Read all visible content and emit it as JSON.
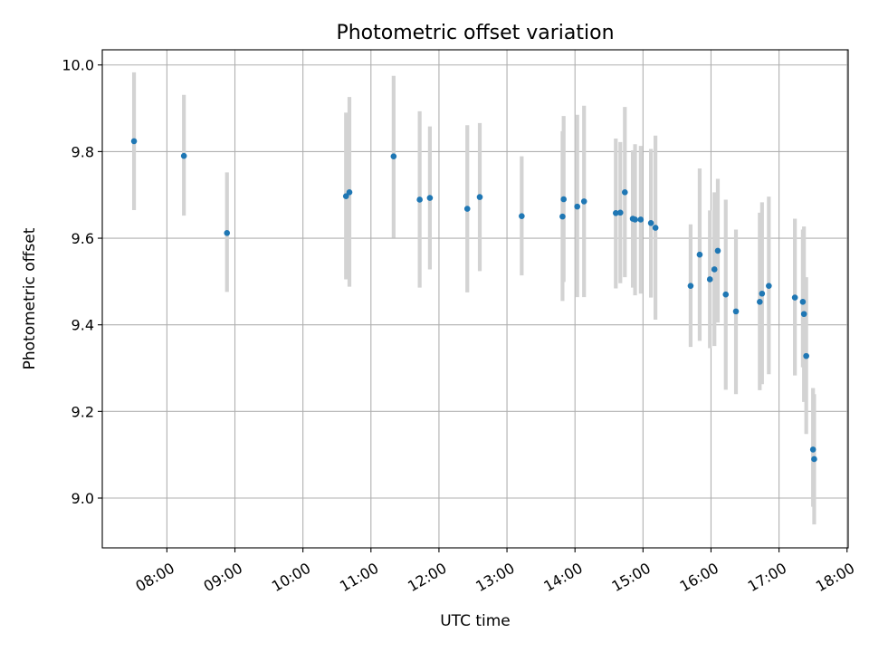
{
  "chart_data": {
    "type": "scatter",
    "title": "Photometric offset variation",
    "xlabel": "UTC time",
    "ylabel": "Photometric offset",
    "x_axis_type": "time",
    "xlim": [
      "07:03",
      "18:01"
    ],
    "ylim": [
      8.885,
      10.035
    ],
    "xticks": [
      "08:00",
      "09:00",
      "10:00",
      "11:00",
      "12:00",
      "13:00",
      "14:00",
      "15:00",
      "16:00",
      "17:00",
      "18:00"
    ],
    "yticks": [
      9.0,
      9.2,
      9.4,
      9.6,
      9.8,
      10.0
    ],
    "ytick_labels": [
      "9.0",
      "9.2",
      "9.4",
      "9.6",
      "9.8",
      "10.0"
    ],
    "grid": true,
    "marker_color": "#1f77b4",
    "errorbar_color": "#d3d3d3",
    "points": [
      {
        "t": "07:31",
        "y": 9.824,
        "lo": 9.665,
        "hi": 9.983
      },
      {
        "t": "08:15",
        "y": 9.79,
        "lo": 9.652,
        "hi": 9.931
      },
      {
        "t": "08:53",
        "y": 9.612,
        "lo": 9.476,
        "hi": 9.752
      },
      {
        "t": "10:38",
        "y": 9.697,
        "lo": 9.505,
        "hi": 9.89
      },
      {
        "t": "10:41",
        "y": 9.706,
        "lo": 9.488,
        "hi": 9.926
      },
      {
        "t": "11:20",
        "y": 9.789,
        "lo": 9.601,
        "hi": 9.975
      },
      {
        "t": "11:43",
        "y": 9.689,
        "lo": 9.486,
        "hi": 9.893
      },
      {
        "t": "11:52",
        "y": 9.693,
        "lo": 9.528,
        "hi": 9.858
      },
      {
        "t": "12:25",
        "y": 9.668,
        "lo": 9.475,
        "hi": 9.861
      },
      {
        "t": "12:36",
        "y": 9.695,
        "lo": 9.524,
        "hi": 9.866
      },
      {
        "t": "13:13",
        "y": 9.651,
        "lo": 9.514,
        "hi": 9.789
      },
      {
        "t": "13:49",
        "y": 9.65,
        "lo": 9.455,
        "hi": 9.847
      },
      {
        "t": "13:50",
        "y": 9.69,
        "lo": 9.499,
        "hi": 9.882
      },
      {
        "t": "14:02",
        "y": 9.673,
        "lo": 9.464,
        "hi": 9.885
      },
      {
        "t": "14:08",
        "y": 9.685,
        "lo": 9.464,
        "hi": 9.906
      },
      {
        "t": "14:36",
        "y": 9.658,
        "lo": 9.484,
        "hi": 9.83
      },
      {
        "t": "14:40",
        "y": 9.659,
        "lo": 9.496,
        "hi": 9.822
      },
      {
        "t": "14:44",
        "y": 9.706,
        "lo": 9.51,
        "hi": 9.903
      },
      {
        "t": "14:51",
        "y": 9.645,
        "lo": 9.486,
        "hi": 9.803
      },
      {
        "t": "14:53",
        "y": 9.643,
        "lo": 9.468,
        "hi": 9.817
      },
      {
        "t": "14:58",
        "y": 9.643,
        "lo": 9.472,
        "hi": 9.813
      },
      {
        "t": "15:07",
        "y": 9.635,
        "lo": 9.463,
        "hi": 9.806
      },
      {
        "t": "15:11",
        "y": 9.624,
        "lo": 9.412,
        "hi": 9.837
      },
      {
        "t": "15:42",
        "y": 9.49,
        "lo": 9.349,
        "hi": 9.632
      },
      {
        "t": "15:50",
        "y": 9.562,
        "lo": 9.363,
        "hi": 9.761
      },
      {
        "t": "15:59",
        "y": 9.505,
        "lo": 9.346,
        "hi": 9.664
      },
      {
        "t": "16:03",
        "y": 9.528,
        "lo": 9.351,
        "hi": 9.706
      },
      {
        "t": "16:06",
        "y": 9.571,
        "lo": 9.405,
        "hi": 9.737
      },
      {
        "t": "16:13",
        "y": 9.47,
        "lo": 9.25,
        "hi": 9.689
      },
      {
        "t": "16:22",
        "y": 9.431,
        "lo": 9.24,
        "hi": 9.62
      },
      {
        "t": "16:43",
        "y": 9.453,
        "lo": 9.249,
        "hi": 9.659
      },
      {
        "t": "16:45",
        "y": 9.472,
        "lo": 9.263,
        "hi": 9.683
      },
      {
        "t": "16:51",
        "y": 9.49,
        "lo": 9.286,
        "hi": 9.696
      },
      {
        "t": "17:14",
        "y": 9.463,
        "lo": 9.283,
        "hi": 9.645
      },
      {
        "t": "17:21",
        "y": 9.453,
        "lo": 9.302,
        "hi": 9.62
      },
      {
        "t": "17:22",
        "y": 9.425,
        "lo": 9.222,
        "hi": 9.627
      },
      {
        "t": "17:24",
        "y": 9.328,
        "lo": 9.148,
        "hi": 9.51
      },
      {
        "t": "17:30",
        "y": 9.112,
        "lo": 8.98,
        "hi": 9.254
      },
      {
        "t": "17:31",
        "y": 9.09,
        "lo": 8.939,
        "hi": 9.24
      }
    ]
  }
}
